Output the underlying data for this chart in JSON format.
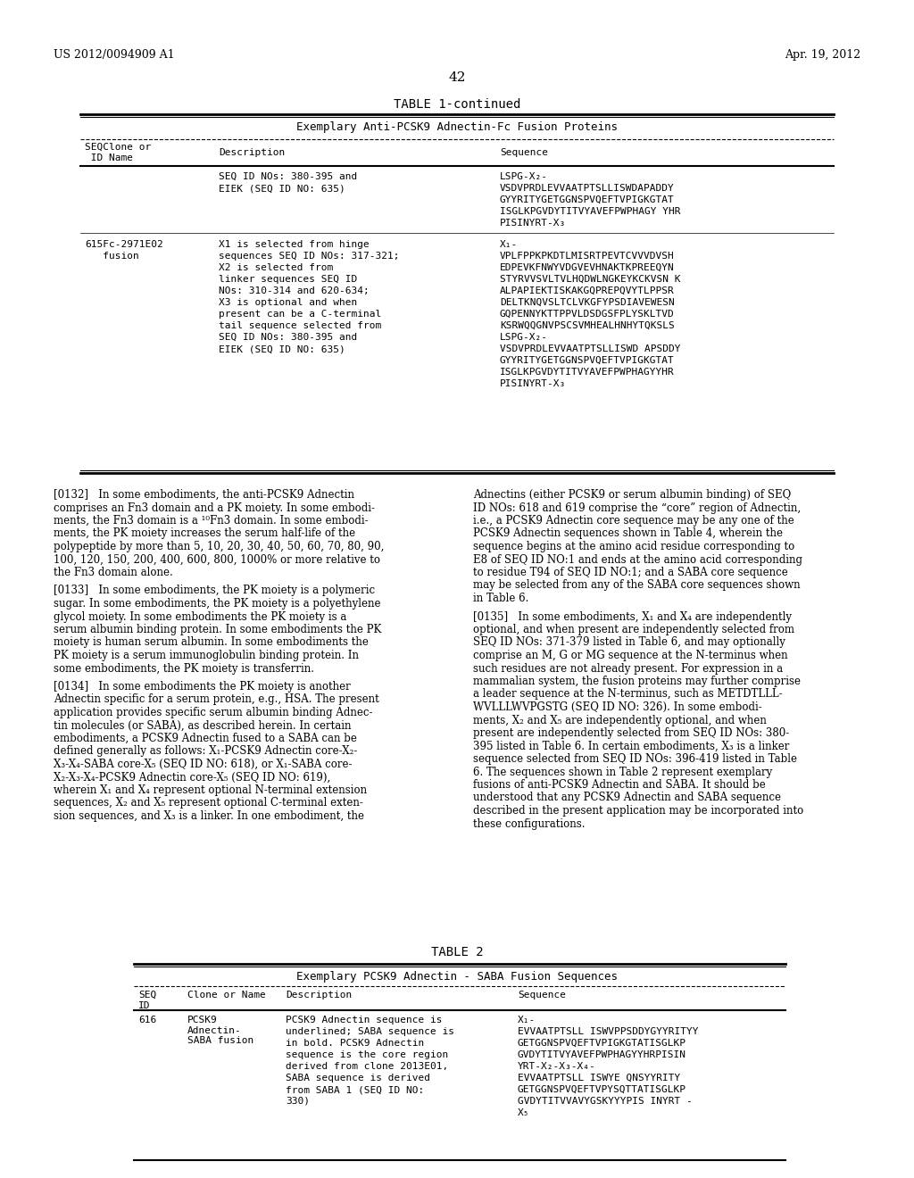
{
  "bg_color": "#ffffff",
  "header_left": "US 2012/0094909 A1",
  "header_right": "Apr. 19, 2012",
  "page_number": "42",
  "table1_title": "TABLE 1-continued",
  "table1_subtitle": "Exemplary Anti-PCSK9 Adnectin-Fc Fusion Proteins",
  "table1_col1_header": "SEQClone or\n ID Name",
  "table1_col2_header": "Description",
  "table1_col3_header": "Sequence",
  "table1_row1_col1": "",
  "table1_row1_col2": "SEQ ID NOs: 380-395 and\nEIEK (SEQ ID NO: 635)",
  "table1_row1_col3": "LSPG-X₂-\nVSDVPRDLEVVAATPTSLLISWDAPADDY\nGYYRITYGETGGNSPVQEFTVPIGKGTAT\nISGLKPGVDYTITVYAVEFPWPHAGYYHR\nPISINYRT-X₃",
  "table1_row2_col1": "615Fc-2971E02\n   fusion",
  "table1_row2_col2": "X1 is selected from hinge\nsequences SEQ ID NOs: 317-321;\nX2 is selected from\nlinker sequences SEQ ID\nNOs: 310-314 and 620-634;\nX3 is optional and when\npresent can be a C-terminal\ntail sequence selected from\nSEQ ID NOs: 380-395 and\nEIEK (SEQ ID NO: 635)",
  "table1_row2_col3": "X₁-\nVPLFPPKPKDTLMISRTPEVTCVVVDVSH\nEDPEVKFNWYVDGVEVHNAKTKPREEQYN\nSTYRVVSVLTVLHQDWLNGKEYKCKVSNK\nALPAPIEKTISKAKGQPREPQVYTLPPSR\nDELTKNQVSLTCLVKGFYPSDIAVEWESN\nGQPENNYKTTPPVLDSDGSFPLYSKLTVD\nKSRWQQGNVPSCSVMHEALHNHYTQKSLS\nLSPG-X₂-\nVSDVPRDLEVVAATPTSLLISWDAPSDDY\nGYYRITYGETGGNSPVQEFTVPIGKGTAT\nISGLKPGVDYTITVYAVEFPWPHAGYYHR\nPISINYRT-X₃",
  "para132_left": "[0132]   In some embodiments, the anti-PCSK9 Adnectin\ncomprises an Fn3 domain and a PK moiety. In some embodi-\nments, the Fn3 domain is a ¹⁰Fn3 domain. In some embodi-\nments, the PK moiety increases the serum half-life of the\npolypeptide by more than 5, 10, 20, 30, 40, 50, 60, 70, 80, 90,\n100, 120, 150, 200, 400, 600, 800, 1000% or more relative to\nthe Fn3 domain alone.",
  "para132_right": "Adnectins (either PCSK9 or serum albumin binding) of SEQ\nID NOs: 618 and 619 comprise the “core” region of Adnectin,\ni.e., a PCSK9 Adnectin core sequence may be any one of the\nPCSK9 Adnectin sequences shown in Table 4, wherein the\nsequence begins at the amino acid residue corresponding to\nE8 of SEQ ID NO:1 and ends at the amino acid corresponding\nto residue T94 of SEQ ID NO:1; and a SABA core sequence\nmay be selected from any of the SABA core sequences shown\nin Table 6.",
  "para133_left": "[0133]   In some embodiments, the PK moiety is a polymeric\nsugar. In some embodiments, the PK moiety is a polyethylene\nglyco1 moiety. In some embodiments the PK moiety is a\nserum albumin binding protein. In some embodiments the PK\nmoiety is human serum albumin. In some embodiments the\nPK moiety is a serum immunoglobulin binding protein. In\nsome embodiments, the PK moiety is transferrin.",
  "para135_right": "[0135]   In some embodiments, X₁ and X₄ are independently\noptional, and when present are independently selected from\nSEQ ID NOs: 371-379 listed in Table 6, and may optionally\ncomprise an M, G or MG sequence at the N-terminus when\nsuch residues are not already present. For expression in a\nmammalian system, the fusion proteins may further comprise\na leader sequence at the N-terminus, such as METDTLLL-\nWVLLLWVPGSTG (SEQ ID NO: 326). In some embodi-\nments, X₂ and X₅ are independently optional, and when\npresent are independently selected from SEQ ID NOs: 380-\n395 listed in Table 6. In certain embodiments, X₃ is a linker\nsequence selected from SEQ ID NOs: 396-419 listed in Table\n6. The sequences shown in Table 2 represent exemplary\nfusions of anti-PCSK9 Adnectin and SABA. It should be\nunderstood that any PCSK9 Adnectin and SABA sequence\ndescribed in the present application may be incorporated into\nthese configurations.",
  "para134_left": "[0134]   In some embodiments the PK moiety is another\nAdnectin specific for a serum protein, e.g., HSA. The present\napplication provides specific serum albumin binding Adnec-\ntin molecules (or SABA), as described herein. In certain\nembodiments, a PCSK9 Adnectin fused to a SABA can be\ndefined generally as follows: X₁-PCSK9 Adnectin core-X₂-\nX₃-X₄-SABA core-X₅ (SEQ ID NO: 618), or X₁-SABA core-\nX₂-X₃-X₄-PCSK9 Adnectin core-X₅ (SEQ ID NO: 619),\nwherein X₁ and X₄ represent optional N-terminal extension\nsequences, X₂ and X₅ represent optional C-terminal exten-\nsion sequences, and X₃ is a linker. In one embodiment, the",
  "table2_title": "TABLE 2",
  "table2_subtitle": "Exemplary PCSK9 Adnectin - SABA Fusion Sequences",
  "table2_col_seq": "SEQ\nID",
  "table2_col_clone": "Clone or Name",
  "table2_col_desc": "Description",
  "table2_col_seq_label": "Sequence",
  "table2_row1_seq": "616",
  "table2_row1_clone": "PCSK9\nAdnectin-\nSABA fusion",
  "table2_row1_desc": "PCSK9 Adnectin sequence is\nunderlined; SABA sequence is\nin bold. PCSK9 Adnectin\nsequence is the core region\nderived from clone 2013E01,\nSABA sequence is derived\nfrom SABA 1 (SEQ ID NO:\n330)",
  "table2_row1_seq_text": "X₁-\nEVVAATSTSLLISWVPPSDDYGYYRITY\nGETGGNSPVQEFTVPIGKGTATISGLKP\nGVDYTITVYAVEFPWPHAGYYHRPISIN\nYRT-X₂-X₃-X₄-\nEVVAATSTSLLISWYEQNSYYRITY\nGETGGNSPVQEFTVPYSQTTATISGLKP\nGVDYTITVVAVYGSKYYYPIS INYRT -\nX₅"
}
